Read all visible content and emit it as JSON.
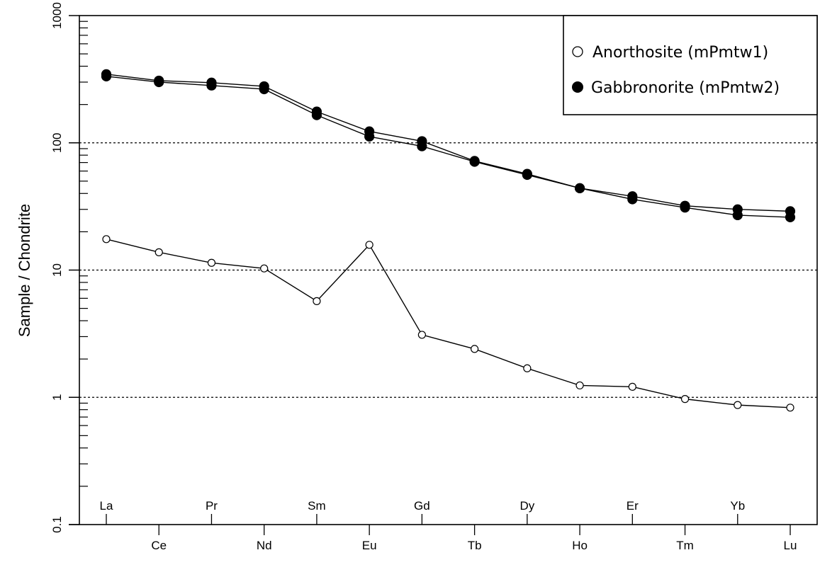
{
  "chart_data": {
    "type": "line",
    "title": "",
    "xlabel": "",
    "ylabel": "Sample / Chondrite",
    "yscale": "log",
    "ylim": [
      0.1,
      1000
    ],
    "y_ticks": [
      "0.1",
      "1",
      "10",
      "100",
      "1000"
    ],
    "y_tick_values": [
      0.1,
      1,
      10,
      100,
      1000
    ],
    "grid": "dotted horizontal lines at 1, 10, 100",
    "categories": [
      "La",
      "Ce",
      "Pr",
      "Nd",
      "Sm",
      "Eu",
      "Gd",
      "Tb",
      "Dy",
      "Ho",
      "Er",
      "Tm",
      "Yb",
      "Lu"
    ],
    "legend_position": "top-right",
    "legend": [
      {
        "label": "Anorthosite (mPmtw1)",
        "marker": "open-circle"
      },
      {
        "label": "Gabbronorite (mPmtw2)",
        "marker": "filled-circle"
      }
    ],
    "series": [
      {
        "name": "Anorthosite (mPmtw1)",
        "marker": "open-circle",
        "values": [
          17.5,
          13.8,
          11.4,
          10.3,
          5.7,
          15.8,
          3.1,
          2.4,
          1.69,
          1.24,
          1.21,
          0.97,
          0.87,
          0.83
        ]
      },
      {
        "name": "Gabbronorite (mPmtw2)",
        "marker": "filled-circle",
        "values": [
          346,
          308,
          297,
          278,
          176,
          123,
          103,
          72,
          57,
          44,
          38,
          32,
          30,
          29
        ]
      },
      {
        "name": "Gabbronorite (mPmtw2)",
        "marker": "filled-circle",
        "values": [
          333,
          300,
          282,
          264,
          165,
          112,
          94,
          71,
          56,
          44,
          36,
          31,
          27,
          26
        ]
      }
    ]
  }
}
